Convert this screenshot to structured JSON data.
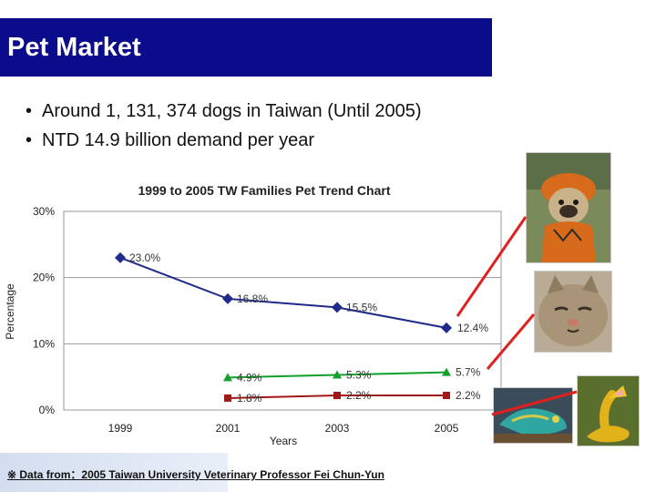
{
  "slide": {
    "title": "Pet Market",
    "bullets": [
      "Around 1, 131, 374 dogs in Taiwan (Until 2005)",
      "NTD 14.9 billion demand per year"
    ],
    "footer": "※ Data from：2005 Taiwan University Veterinary Professor Fei Chun-Yun"
  },
  "colors": {
    "title_bar": "#0b0c8c",
    "dogs": "#1f2a8a",
    "cats": "#12a02c",
    "reptiles": "#a01818",
    "arrow": "#e02020"
  },
  "chart_data": {
    "type": "line",
    "title": "1999 to 2005 TW Families Pet Trend Chart",
    "xlabel": "Years",
    "ylabel": "Percentage",
    "x": [
      "1999",
      "2001",
      "2003",
      "2005"
    ],
    "ylim": [
      0,
      30
    ],
    "y_ticks": [
      "0%",
      "10%",
      "20%",
      "30%"
    ],
    "grid": true,
    "series": [
      {
        "values": [
          23.0,
          16.8,
          15.5,
          12.4
        ],
        "labels": [
          "23.0%",
          "16.8%",
          "15.5%",
          "12.4%"
        ],
        "marker": "diamond",
        "color": "#1f2a8a"
      },
      {
        "values": [
          null,
          4.9,
          5.3,
          5.7
        ],
        "labels": [
          "",
          "4.9%",
          "5.3%",
          "5.7%"
        ],
        "marker": "triangle",
        "color": "#12a02c"
      },
      {
        "values": [
          null,
          1.8,
          2.2,
          2.2
        ],
        "labels": [
          "",
          "1.8%",
          "2.2%",
          "2.2%"
        ],
        "marker": "square",
        "color": "#a01818"
      }
    ]
  },
  "images": [
    {
      "icon": "pug-dog-in-costume-photo"
    },
    {
      "icon": "cat-face-photo"
    },
    {
      "icon": "chameleon-photo"
    },
    {
      "icon": "yellow-snake-photo"
    }
  ]
}
